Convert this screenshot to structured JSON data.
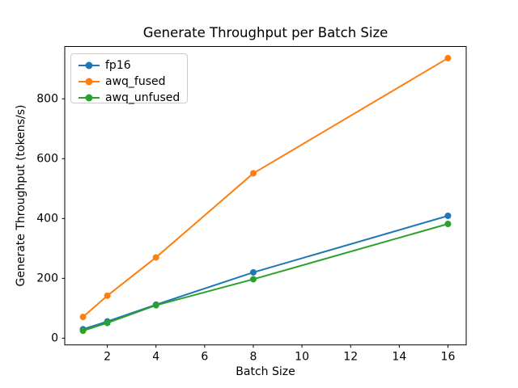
{
  "chart_data": {
    "type": "line",
    "title": "Generate Throughput per Batch Size",
    "xlabel": "Batch Size",
    "ylabel": "Generate Throughput (tokens/s)",
    "x": [
      1,
      2,
      4,
      8,
      16
    ],
    "series": [
      {
        "name": "fp16",
        "color": "#1f77b4",
        "values": [
          30,
          56,
          112,
          220,
          409
        ]
      },
      {
        "name": "awq_fused",
        "color": "#ff7f0e",
        "values": [
          71,
          142,
          270,
          551,
          936
        ]
      },
      {
        "name": "awq_unfused",
        "color": "#2ca02c",
        "values": [
          25,
          51,
          110,
          197,
          382
        ]
      }
    ],
    "xticks": [
      2,
      4,
      6,
      8,
      10,
      12,
      14,
      16
    ],
    "yticks": [
      0,
      200,
      400,
      600,
      800
    ],
    "xlim": [
      0.25,
      16.75
    ],
    "ylim": [
      -22.5,
      975
    ],
    "grid": false,
    "legend_position": "upper left",
    "axis_color": "#000000",
    "background_color": "#ffffff",
    "marker": "circle",
    "marker_radius": 4,
    "line_width": 2
  }
}
